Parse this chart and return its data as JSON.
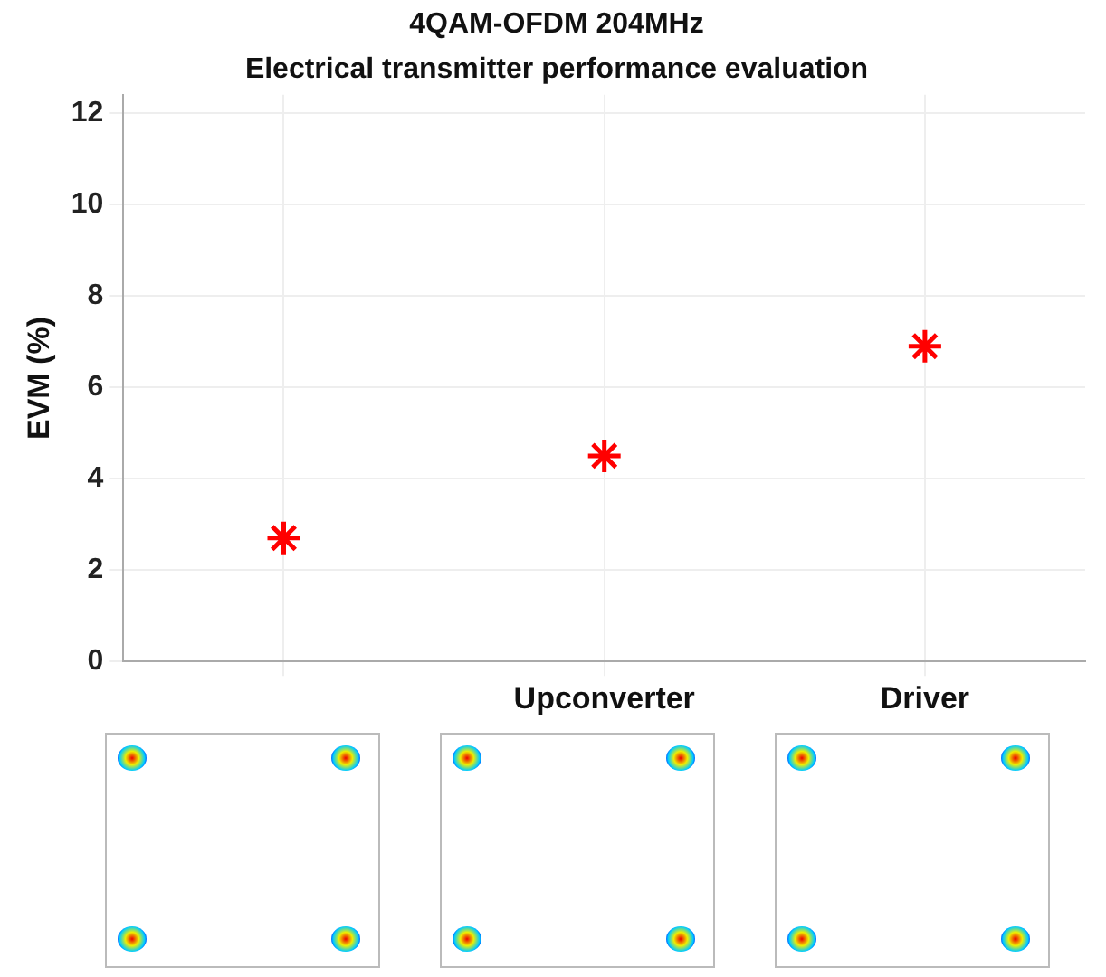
{
  "chart_data": {
    "type": "scatter",
    "title": "4QAM-OFDM 204MHz",
    "subtitle": "Electrical transmitter performance evaluation",
    "ylabel": "EVM (%)",
    "categories": [
      null,
      "Upconverter",
      "Driver"
    ],
    "values": [
      2.7,
      4.5,
      6.9
    ],
    "color": "#ff0000",
    "marker": "cross",
    "ylim": [
      0,
      12.4
    ],
    "yticks": [
      0,
      2,
      4,
      6,
      8,
      10,
      12
    ],
    "grid": true,
    "legend": false
  }
}
